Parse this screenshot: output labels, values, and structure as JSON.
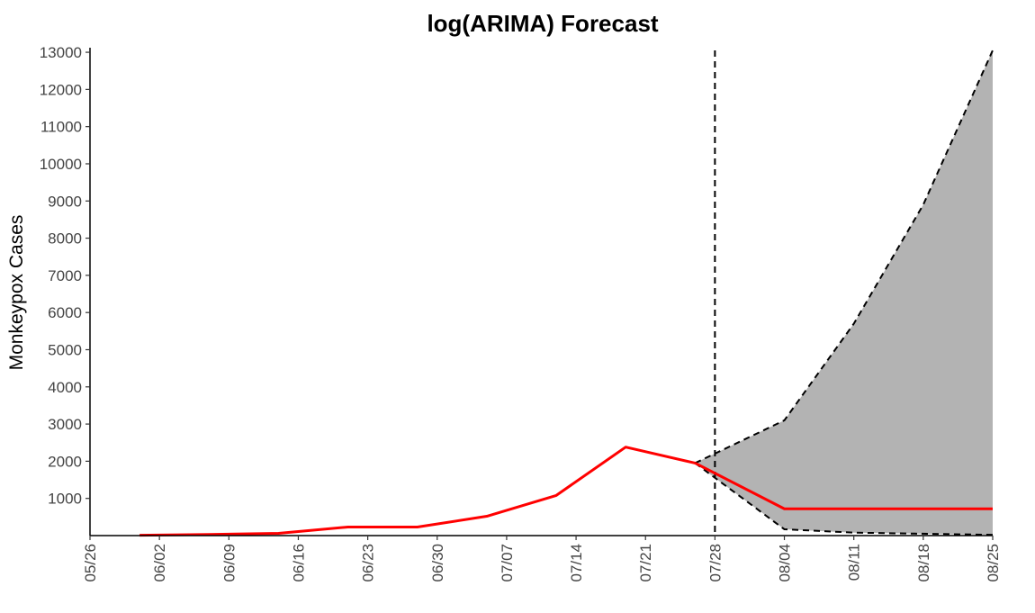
{
  "chart_data": {
    "type": "line",
    "title": "log(ARIMA) Forecast",
    "xlabel": "",
    "ylabel": "Monkeypox Cases",
    "x_ticks": [
      "05/26",
      "06/02",
      "06/09",
      "06/16",
      "06/23",
      "06/30",
      "07/07",
      "07/14",
      "07/21",
      "07/28",
      "08/04",
      "08/11",
      "08/18",
      "08/25"
    ],
    "y_ticks": [
      1000,
      2000,
      3000,
      4000,
      5000,
      6000,
      7000,
      8000,
      9000,
      10000,
      11000,
      12000,
      13000
    ],
    "ylim": [
      0,
      13050
    ],
    "xlim": [
      "05/26",
      "08/25"
    ],
    "grid": false,
    "forecast_start": "07/28",
    "series": [
      {
        "role": "observed",
        "color": "#ff0000",
        "x": [
          "05/31",
          "06/07",
          "06/14",
          "06/21",
          "06/28",
          "07/05",
          "07/12",
          "07/19",
          "07/26"
        ],
        "values": [
          10,
          30,
          60,
          230,
          230,
          520,
          1080,
          2380,
          1950
        ]
      },
      {
        "role": "forecast",
        "color": "#ff0000",
        "x": [
          "07/26",
          "08/04",
          "08/11",
          "08/18",
          "08/25"
        ],
        "values": [
          1950,
          720,
          720,
          720,
          720
        ]
      }
    ],
    "interval": {
      "fill": "#b3b3b3",
      "x": [
        "07/26",
        "08/04",
        "08/11",
        "08/18",
        "08/25"
      ],
      "upper": [
        1950,
        3100,
        5700,
        8900,
        13050
      ],
      "lower": [
        1950,
        170,
        80,
        50,
        20
      ]
    }
  }
}
